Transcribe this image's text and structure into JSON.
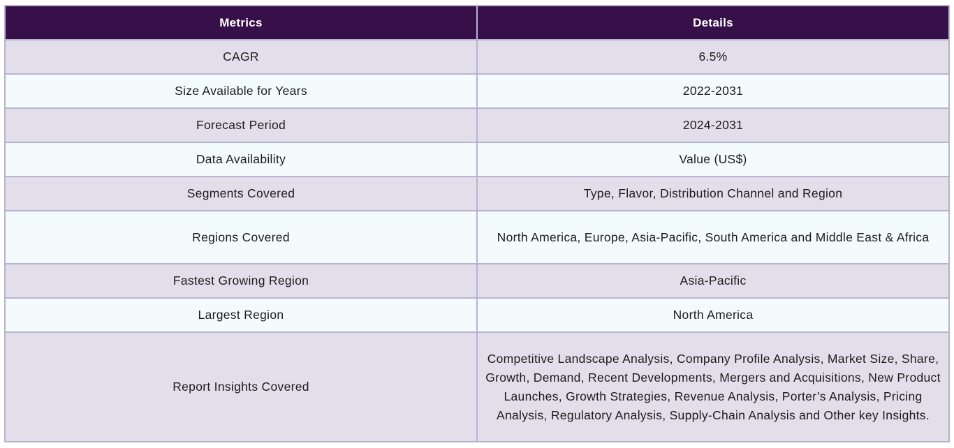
{
  "table": {
    "headers": [
      "Metrics",
      "Details"
    ],
    "rows": [
      {
        "metric": "CAGR",
        "detail": "6.5%"
      },
      {
        "metric": "Size Available for Years",
        "detail": "2022-2031"
      },
      {
        "metric": "Forecast Period",
        "detail": "2024-2031"
      },
      {
        "metric": "Data Availability",
        "detail": "Value (US$)"
      },
      {
        "metric": "Segments Covered",
        "detail": "Type, Flavor, Distribution Channel and Region"
      },
      {
        "metric": "Regions Covered",
        "detail": "North America, Europe, Asia-Pacific, South America and Middle East & Africa"
      },
      {
        "metric": "Fastest Growing Region",
        "detail": "Asia-Pacific"
      },
      {
        "metric": "Largest Region",
        "detail": "North America"
      },
      {
        "metric": "Report Insights Covered",
        "detail": "Competitive Landscape Analysis, Company Profile Analysis, Market Size, Share, Growth, Demand, Recent Developments, Mergers and Acquisitions, New Product Launches, Growth Strategies, Revenue Analysis, Porter’s Analysis, Pricing Analysis, Regulatory Analysis, Supply-Chain Analysis and Other key Insights."
      }
    ]
  },
  "colors": {
    "header_bg": "#371049",
    "row_odd_bg": "#e2dfeb",
    "row_even_bg": "#f4fbfd",
    "border": "#b8b2d1"
  }
}
